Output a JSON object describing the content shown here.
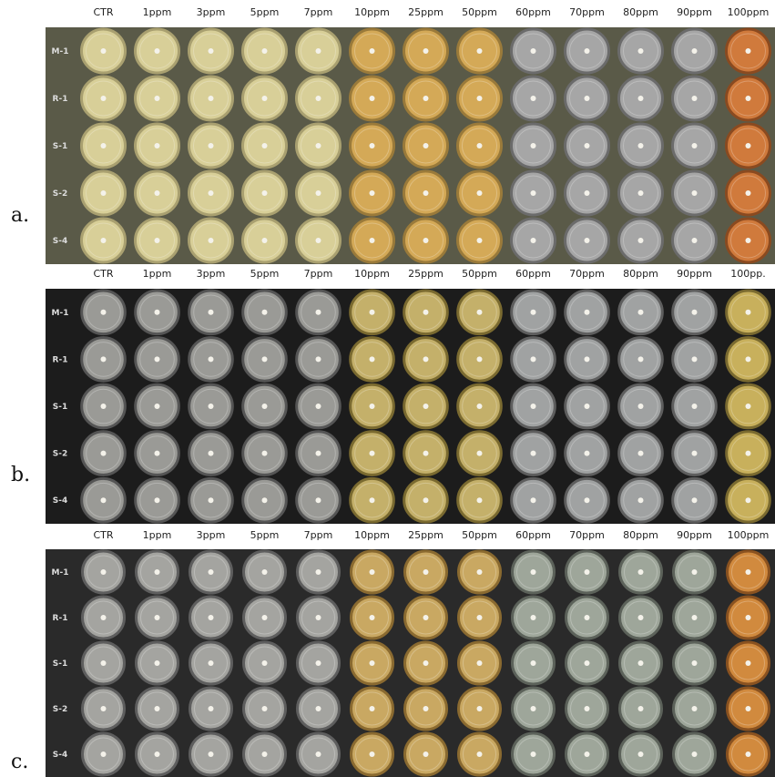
{
  "panels": [
    {
      "label": "a.",
      "columns": [
        "CTR",
        "1ppm",
        "3ppm",
        "5ppm",
        "7ppm",
        "10ppm",
        "25ppm",
        "50ppm",
        "60ppm",
        "70ppm",
        "80ppm",
        "90ppm",
        "100ppm"
      ],
      "rows": [
        "M-1",
        "R-1",
        "S-1",
        "S-2",
        "S-4"
      ]
    },
    {
      "label": "b.",
      "columns": [
        "CTR",
        "1ppm",
        "3ppm",
        "5ppm",
        "7ppm",
        "10ppm",
        "25ppm",
        "50ppm",
        "60ppm",
        "70ppm",
        "80ppm",
        "90ppm",
        "100pp."
      ],
      "rows": [
        "M-1",
        "R-1",
        "S-1",
        "S-2",
        "S-4"
      ]
    },
    {
      "label": "c.",
      "columns": [
        "CTR",
        "1ppm",
        "3ppm",
        "5ppm",
        "7ppm",
        "10ppm",
        "25ppm",
        "50ppm",
        "60ppm",
        "70ppm",
        "80ppm",
        "90ppm",
        "100ppm"
      ],
      "rows": [
        "M-1",
        "R-1",
        "S-1",
        "S-2",
        "S-4"
      ]
    }
  ]
}
